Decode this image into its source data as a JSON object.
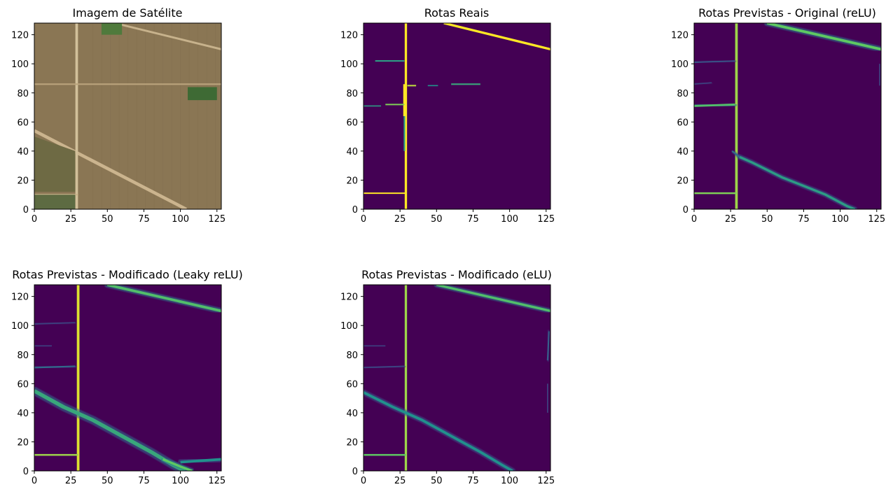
{
  "chart_data": [
    {
      "type": "heatmap",
      "title": "Imagem de Satélite",
      "colormap": "rgb",
      "xlim": [
        0,
        128
      ],
      "ylim": [
        128,
        0
      ],
      "x_ticks": [
        0,
        25,
        50,
        75,
        100,
        125
      ],
      "y_ticks": [
        0,
        20,
        40,
        60,
        80,
        100,
        120
      ],
      "background": "#8a7654",
      "features": [
        {
          "kind": "road",
          "points": [
            [
              0,
              54
            ],
            [
              104,
              0
            ]
          ],
          "width": 2.2,
          "color": "#cbb48e"
        },
        {
          "kind": "road",
          "points": [
            [
              29,
              0
            ],
            [
              29,
              128
            ]
          ],
          "width": 1.8,
          "color": "#d2c09a"
        },
        {
          "kind": "road",
          "points": [
            [
              0,
              10
            ],
            [
              30,
              10
            ]
          ],
          "width": 1.0,
          "color": "#c9b48c"
        },
        {
          "kind": "road",
          "points": [
            [
              0,
              86
            ],
            [
              128,
              86
            ]
          ],
          "width": 1.0,
          "color": "#b9a37c"
        },
        {
          "kind": "road",
          "points": [
            [
              55,
              128
            ],
            [
              128,
              110
            ]
          ],
          "width": 1.4,
          "color": "#c7b28c"
        },
        {
          "kind": "field",
          "points": [
            [
              0,
              0
            ],
            [
              28,
              0
            ],
            [
              28,
              10
            ],
            [
              0,
              10
            ]
          ],
          "width": 0,
          "color": "#5d6b42"
        },
        {
          "kind": "field",
          "points": [
            [
              0,
              12
            ],
            [
              28,
              12
            ],
            [
              28,
              40
            ],
            [
              0,
              50
            ]
          ],
          "width": 0,
          "color": "#6e6a44"
        },
        {
          "kind": "field",
          "points": [
            [
              105,
              75
            ],
            [
              125,
              75
            ],
            [
              125,
              84
            ],
            [
              105,
              84
            ]
          ],
          "width": 0,
          "color": "#3e6a34"
        },
        {
          "kind": "field",
          "points": [
            [
              46,
              120
            ],
            [
              60,
              120
            ],
            [
              60,
              128
            ],
            [
              46,
              128
            ]
          ],
          "width": 0,
          "color": "#4f7a3c"
        }
      ]
    },
    {
      "type": "heatmap",
      "title": "Rotas Reais",
      "colormap": "viridis",
      "xlim": [
        0,
        128
      ],
      "ylim": [
        128,
        0
      ],
      "x_ticks": [
        0,
        25,
        50,
        75,
        100,
        125
      ],
      "y_ticks": [
        0,
        20,
        40,
        60,
        80,
        100,
        120
      ],
      "features": [
        {
          "kind": "road",
          "points": [
            [
              29,
              0
            ],
            [
              29,
              128
            ]
          ],
          "width": 1.6,
          "intensity": 1.0
        },
        {
          "kind": "road",
          "points": [
            [
              0,
              11
            ],
            [
              29,
              11
            ]
          ],
          "width": 1.0,
          "intensity": 1.0
        },
        {
          "kind": "road",
          "points": [
            [
              28,
              40
            ],
            [
              28,
              64
            ]
          ],
          "width": 1.0,
          "intensity": 0.55
        },
        {
          "kind": "road",
          "points": [
            [
              28,
              64
            ],
            [
              28,
              86
            ]
          ],
          "width": 1.6,
          "intensity": 1.0
        },
        {
          "kind": "road",
          "points": [
            [
              0,
              71
            ],
            [
              12,
              71
            ]
          ],
          "width": 0.8,
          "intensity": 0.55
        },
        {
          "kind": "road",
          "points": [
            [
              15,
              72
            ],
            [
              28,
              72
            ]
          ],
          "width": 1.0,
          "intensity": 0.8
        },
        {
          "kind": "road",
          "points": [
            [
              30,
              85
            ],
            [
              36,
              85
            ]
          ],
          "width": 1.0,
          "intensity": 0.9
        },
        {
          "kind": "road",
          "points": [
            [
              44,
              85
            ],
            [
              51,
              85
            ]
          ],
          "width": 0.8,
          "intensity": 0.5
        },
        {
          "kind": "road",
          "points": [
            [
              60,
              86
            ],
            [
              80,
              86
            ]
          ],
          "width": 1.0,
          "intensity": 0.6
        },
        {
          "kind": "road",
          "points": [
            [
              8,
              102
            ],
            [
              28,
              102
            ]
          ],
          "width": 1.0,
          "intensity": 0.55
        },
        {
          "kind": "road",
          "points": [
            [
              55,
              128
            ],
            [
              128,
              110
            ]
          ],
          "width": 1.6,
          "intensity": 1.0
        }
      ]
    },
    {
      "type": "heatmap",
      "title": "Rotas Previstas - Original (reLU)",
      "colormap": "viridis",
      "xlim": [
        0,
        128
      ],
      "ylim": [
        128,
        0
      ],
      "x_ticks": [
        0,
        25,
        50,
        75,
        100,
        125
      ],
      "y_ticks": [
        0,
        20,
        40,
        60,
        80,
        100,
        120
      ],
      "features": [
        {
          "kind": "road",
          "points": [
            [
              29,
              0
            ],
            [
              29,
              128
            ]
          ],
          "width": 1.8,
          "intensity": 0.85
        },
        {
          "kind": "road",
          "points": [
            [
              0,
              11
            ],
            [
              29,
              11
            ]
          ],
          "width": 1.2,
          "intensity": 0.8
        },
        {
          "kind": "road",
          "points": [
            [
              31,
              36
            ],
            [
              40,
              32
            ],
            [
              60,
              22
            ],
            [
              90,
              10
            ],
            [
              105,
              2
            ],
            [
              110,
              0
            ]
          ],
          "width": 1.6,
          "intensity": 0.55
        },
        {
          "kind": "road",
          "points": [
            [
              26,
              40
            ],
            [
              31,
              36
            ]
          ],
          "width": 1.0,
          "intensity": 0.35
        },
        {
          "kind": "road",
          "points": [
            [
              0,
              71
            ],
            [
              28,
              72
            ]
          ],
          "width": 1.4,
          "intensity": 0.7
        },
        {
          "kind": "road",
          "points": [
            [
              0,
              86
            ],
            [
              12,
              87
            ]
          ],
          "width": 0.8,
          "intensity": 0.2
        },
        {
          "kind": "road",
          "points": [
            [
              0,
              101
            ],
            [
              28,
              102
            ]
          ],
          "width": 0.8,
          "intensity": 0.28
        },
        {
          "kind": "road",
          "points": [
            [
              50,
              128
            ],
            [
              128,
              110
            ]
          ],
          "width": 1.8,
          "intensity": 0.75
        },
        {
          "kind": "road",
          "points": [
            [
              127,
              85
            ],
            [
              127,
              100
            ]
          ],
          "width": 0.8,
          "intensity": 0.2
        }
      ]
    },
    {
      "type": "heatmap",
      "title": "Rotas Previstas - Modificado (Leaky reLU)",
      "colormap": "viridis",
      "xlim": [
        0,
        128
      ],
      "ylim": [
        128,
        0
      ],
      "x_ticks": [
        0,
        25,
        50,
        75,
        100,
        125
      ],
      "y_ticks": [
        0,
        20,
        40,
        60,
        80,
        100,
        120
      ],
      "features": [
        {
          "kind": "road",
          "points": [
            [
              30,
              0
            ],
            [
              30,
              128
            ]
          ],
          "width": 1.8,
          "intensity": 0.95
        },
        {
          "kind": "road",
          "points": [
            [
              0,
              11
            ],
            [
              30,
              11
            ]
          ],
          "width": 1.2,
          "intensity": 0.85
        },
        {
          "kind": "road",
          "points": [
            [
              0,
              55
            ],
            [
              20,
              44
            ],
            [
              40,
              35
            ],
            [
              60,
              24
            ],
            [
              80,
              13
            ],
            [
              95,
              4
            ],
            [
              103,
              0
            ]
          ],
          "width": 2.6,
          "intensity": 0.6
        },
        {
          "kind": "road",
          "points": [
            [
              88,
              8
            ],
            [
              100,
              3
            ],
            [
              108,
              0
            ]
          ],
          "width": 1.6,
          "intensity": 0.75
        },
        {
          "kind": "road",
          "points": [
            [
              100,
              6
            ],
            [
              128,
              8
            ]
          ],
          "width": 1.8,
          "intensity": 0.5
        },
        {
          "kind": "road",
          "points": [
            [
              0,
              71
            ],
            [
              28,
              72
            ]
          ],
          "width": 1.0,
          "intensity": 0.35
        },
        {
          "kind": "road",
          "points": [
            [
              0,
              86
            ],
            [
              12,
              86
            ]
          ],
          "width": 0.8,
          "intensity": 0.2
        },
        {
          "kind": "road",
          "points": [
            [
              0,
              101
            ],
            [
              28,
              102
            ]
          ],
          "width": 0.8,
          "intensity": 0.2
        },
        {
          "kind": "road",
          "points": [
            [
              50,
              128
            ],
            [
              128,
              110
            ]
          ],
          "width": 1.8,
          "intensity": 0.7
        }
      ]
    },
    {
      "type": "heatmap",
      "title": "Rotas Previstas - Modificado (eLU)",
      "colormap": "viridis",
      "xlim": [
        0,
        128
      ],
      "ylim": [
        128,
        0
      ],
      "x_ticks": [
        0,
        25,
        50,
        75,
        100,
        125
      ],
      "y_ticks": [
        0,
        20,
        40,
        60,
        80,
        100,
        120
      ],
      "features": [
        {
          "kind": "road",
          "points": [
            [
              29,
              0
            ],
            [
              29,
              128
            ]
          ],
          "width": 1.6,
          "intensity": 0.85
        },
        {
          "kind": "road",
          "points": [
            [
              0,
              11
            ],
            [
              29,
              11
            ]
          ],
          "width": 1.2,
          "intensity": 0.75
        },
        {
          "kind": "road",
          "points": [
            [
              0,
              54
            ],
            [
              20,
              44
            ],
            [
              40,
              35
            ],
            [
              60,
              24
            ],
            [
              80,
              13
            ],
            [
              95,
              4
            ],
            [
              102,
              0
            ]
          ],
          "width": 1.8,
          "intensity": 0.5
        },
        {
          "kind": "road",
          "points": [
            [
              0,
              71
            ],
            [
              28,
              72
            ]
          ],
          "width": 0.8,
          "intensity": 0.22
        },
        {
          "kind": "road",
          "points": [
            [
              0,
              86
            ],
            [
              15,
              86
            ]
          ],
          "width": 0.8,
          "intensity": 0.2
        },
        {
          "kind": "road",
          "points": [
            [
              50,
              128
            ],
            [
              128,
              110
            ]
          ],
          "width": 1.6,
          "intensity": 0.7
        },
        {
          "kind": "road",
          "points": [
            [
              126,
              40
            ],
            [
              126,
              60
            ]
          ],
          "width": 0.8,
          "intensity": 0.2
        },
        {
          "kind": "road",
          "points": [
            [
              126,
              76
            ],
            [
              127,
              96
            ]
          ],
          "width": 1.0,
          "intensity": 0.3
        }
      ]
    }
  ]
}
